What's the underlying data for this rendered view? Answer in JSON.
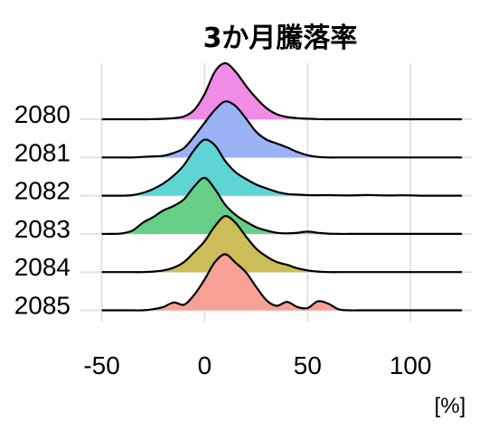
{
  "chart_data": {
    "type": "ridgeline",
    "title": "3か月騰落率",
    "xlabel": "[%]",
    "ylabel": "",
    "xlim": [
      -52,
      128
    ],
    "x_ticks": [
      -50,
      0,
      50,
      100
    ],
    "x_tick_labels": [
      "-50",
      "0",
      "50",
      "100"
    ],
    "categories": [
      "2080",
      "2081",
      "2082",
      "2083",
      "2084",
      "2085"
    ],
    "grid": true,
    "legend": "none",
    "x": [
      -50,
      -45,
      -40,
      -35,
      -30,
      -25,
      -20,
      -15,
      -10,
      -5,
      0,
      5,
      10,
      15,
      20,
      25,
      30,
      35,
      40,
      45,
      50,
      55,
      60,
      65,
      70,
      75,
      80,
      85,
      90,
      95,
      100,
      105,
      110,
      115,
      120,
      125
    ],
    "series": [
      {
        "name": "2080",
        "color": "#f08ce6",
        "density": [
          0,
          0,
          0,
          0,
          0,
          0.003,
          0.008,
          0.02,
          0.05,
          0.17,
          0.45,
          0.85,
          1.0,
          0.85,
          0.6,
          0.38,
          0.2,
          0.09,
          0.04,
          0.02,
          0.01,
          0.004,
          0,
          0,
          0,
          0,
          0,
          0,
          0,
          0,
          0,
          0,
          0,
          0,
          0,
          0
        ]
      },
      {
        "name": "2081",
        "color": "#9cb2f6",
        "density": [
          0,
          0,
          0,
          0,
          0.01,
          0.02,
          0.03,
          0.08,
          0.17,
          0.38,
          0.62,
          0.85,
          1.0,
          0.92,
          0.7,
          0.46,
          0.32,
          0.25,
          0.18,
          0.1,
          0.04,
          0.01,
          0,
          0,
          0,
          0,
          0,
          0,
          0,
          0,
          0,
          0,
          0,
          0,
          0,
          0
        ]
      },
      {
        "name": "2082",
        "color": "#5fd4d4",
        "density": [
          0,
          0,
          0,
          0.01,
          0.05,
          0.12,
          0.22,
          0.36,
          0.55,
          0.82,
          1.0,
          0.9,
          0.62,
          0.42,
          0.3,
          0.2,
          0.13,
          0.07,
          0.03,
          0.02,
          0.01,
          0.008,
          0.01,
          0.006,
          0.004,
          0.008,
          0.012,
          0.006,
          0.004,
          0.006,
          0.005,
          0,
          0,
          0,
          0,
          0
        ]
      },
      {
        "name": "2083",
        "color": "#66ce86",
        "density": [
          0,
          0,
          0.01,
          0.06,
          0.2,
          0.3,
          0.42,
          0.5,
          0.62,
          0.85,
          1.0,
          0.8,
          0.52,
          0.34,
          0.22,
          0.12,
          0.06,
          0.02,
          0.01,
          0.02,
          0.04,
          0.02,
          0.005,
          0,
          0,
          0,
          0,
          0,
          0,
          0,
          0,
          0,
          0,
          0,
          0,
          0
        ]
      },
      {
        "name": "2084",
        "color": "#cbbd57",
        "density": [
          0,
          0,
          0,
          0,
          0,
          0.01,
          0.03,
          0.08,
          0.18,
          0.36,
          0.55,
          0.82,
          1.0,
          0.88,
          0.64,
          0.42,
          0.28,
          0.18,
          0.13,
          0.07,
          0.03,
          0.01,
          0,
          0,
          0,
          0,
          0,
          0,
          0,
          0,
          0,
          0,
          0,
          0,
          0,
          0
        ]
      },
      {
        "name": "2085",
        "color": "#f7a196",
        "density": [
          0,
          0,
          0,
          0,
          0,
          0.02,
          0.06,
          0.14,
          0.1,
          0.28,
          0.55,
          0.86,
          1.0,
          0.85,
          0.68,
          0.42,
          0.18,
          0.08,
          0.15,
          0.06,
          0.04,
          0.16,
          0.12,
          0.02,
          0,
          0,
          0,
          0,
          0,
          0,
          0,
          0,
          0,
          0,
          0,
          0
        ]
      }
    ]
  }
}
